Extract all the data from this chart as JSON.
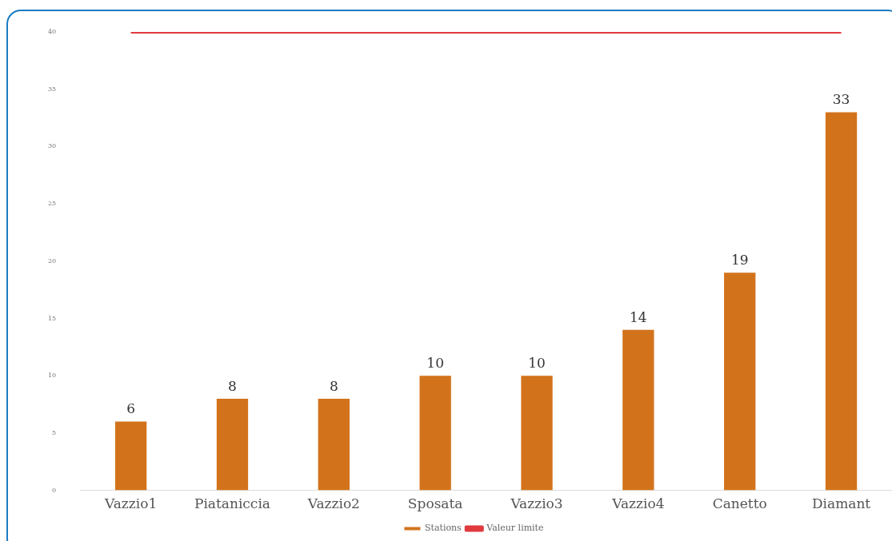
{
  "chart_data": {
    "type": "bar",
    "categories": [
      "Vazzio1",
      "Piataniccia",
      "Vazzio2",
      "Sposata",
      "Vazzio3",
      "Vazzio4",
      "Canetto",
      "Diamant"
    ],
    "series": [
      {
        "name": "Stations",
        "color": "#d2731c",
        "values": [
          6,
          8,
          8,
          10,
          10,
          14,
          19,
          33
        ],
        "value_labels": [
          "6",
          "8",
          "8",
          "10",
          "10",
          "14",
          "19",
          "33"
        ]
      },
      {
        "name": "Valeur limite",
        "type": "line",
        "color": "#e0393e",
        "values": [
          40,
          40,
          40,
          40,
          40,
          40,
          40,
          40
        ]
      }
    ],
    "ylim": [
      0,
      40
    ],
    "yticks": [
      0,
      5,
      10,
      15,
      20,
      25,
      30,
      35,
      40
    ],
    "grid": false,
    "legend": "bottom",
    "marker": "none",
    "line_style": "solid"
  }
}
